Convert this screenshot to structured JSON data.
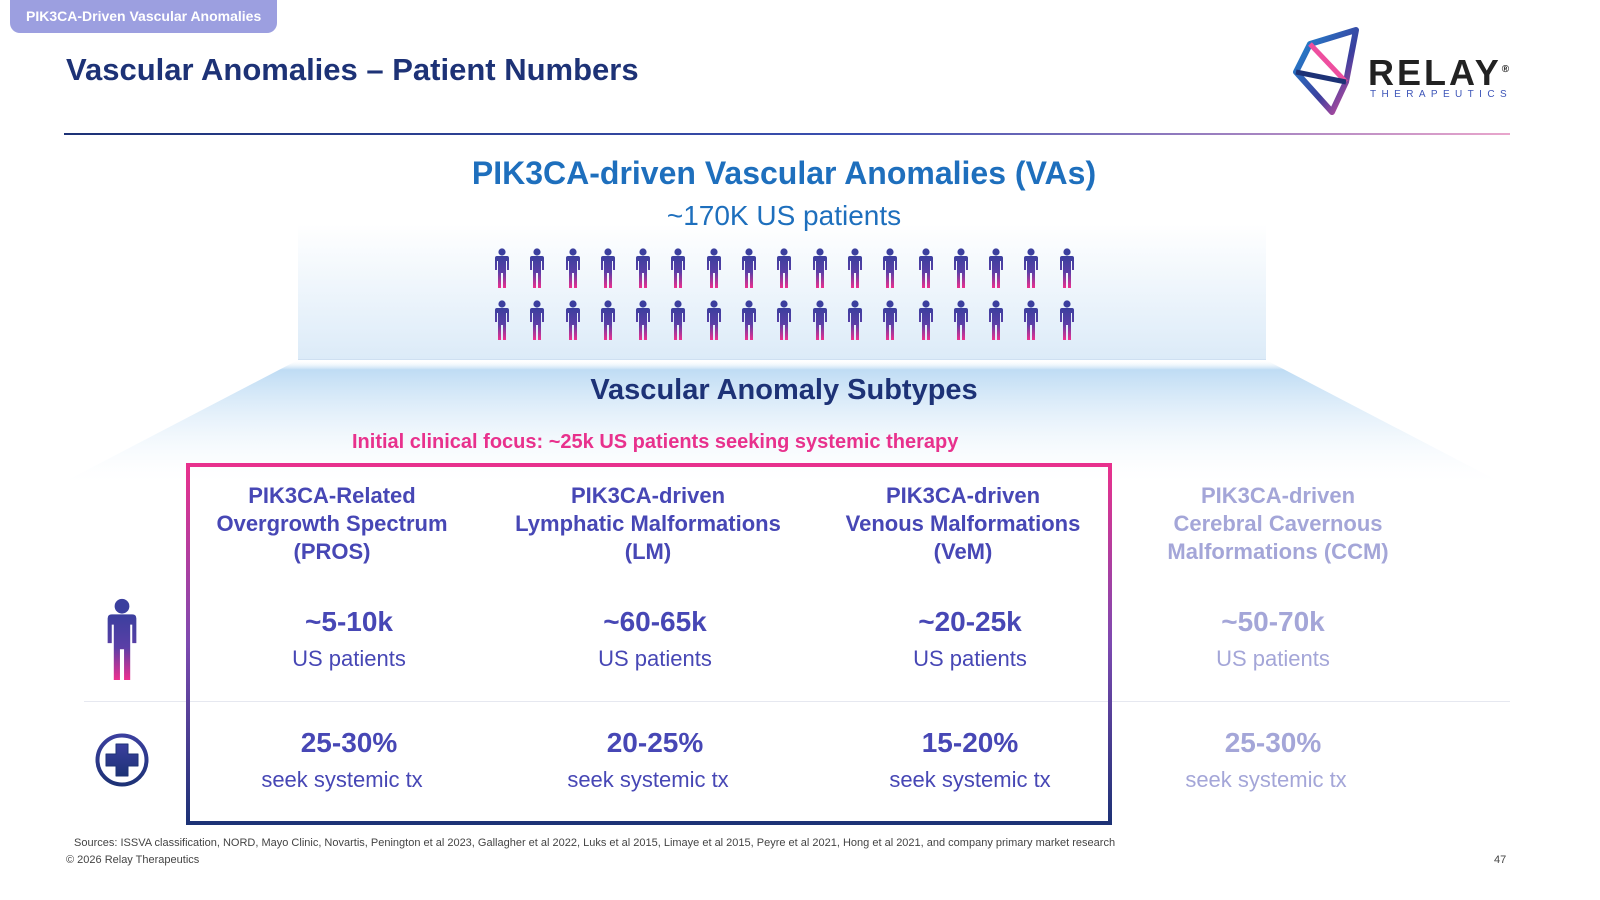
{
  "header": {
    "tag": "PIK3CA-Driven Vascular Anomalies",
    "title": "Vascular Anomalies – Patient Numbers"
  },
  "logo": {
    "word": "RELAY",
    "sub": "THERAPEUTICS",
    "registered": "®"
  },
  "overview": {
    "title": "PIK3CA-driven Vascular Anomalies (VAs)",
    "subtitle": "~170K US patients",
    "crowd_rows": 2,
    "crowd_per_row": 17
  },
  "subtypes_title": "Vascular Anomaly Subtypes",
  "focus_label": "Initial clinical focus: ~25k US patients seeking systemic therapy",
  "columns": [
    {
      "name": [
        "PIK3CA-Related",
        "Overgrowth Spectrum",
        "(PROS)"
      ],
      "count": "~5-10k",
      "unit": "US patients",
      "pct": "25-30%",
      "tx": "seek systemic tx",
      "in_focus": true
    },
    {
      "name": [
        "PIK3CA-driven",
        "Lymphatic Malformations",
        "(LM)"
      ],
      "count": "~60-65k",
      "unit": "US patients",
      "pct": "20-25%",
      "tx": "seek systemic tx",
      "in_focus": true
    },
    {
      "name": [
        "PIK3CA-driven",
        "Venous Malformations",
        "(VeM)"
      ],
      "count": "~20-25k",
      "unit": "US patients",
      "pct": "15-20%",
      "tx": "seek systemic tx",
      "in_focus": true
    },
    {
      "name": [
        "PIK3CA-driven",
        "Cerebral Cavernous",
        "Malformations (CCM)"
      ],
      "count": "~50-70k",
      "unit": "US patients",
      "pct": "25-30%",
      "tx": "seek systemic tx",
      "in_focus": false
    }
  ],
  "icons": {
    "patients_row": "person-icon",
    "treatment_row": "medical-cross-icon"
  },
  "colors": {
    "navy": "#1d3276",
    "blue": "#1e6fbd",
    "pink": "#e8318d",
    "purple": "#4747b5",
    "dim": "#a4a6d8"
  },
  "footer": {
    "sources": "Sources: ISSVA classification, NORD, Mayo Clinic, Novartis, Penington et al 2023, Gallagher et al 2022, Luks et al 2015, Limaye et al 2015, Peyre et al 2021, Hong et al 2021, and company primary market research",
    "copyright": "© 2026 Relay Therapeutics",
    "page": "47"
  }
}
